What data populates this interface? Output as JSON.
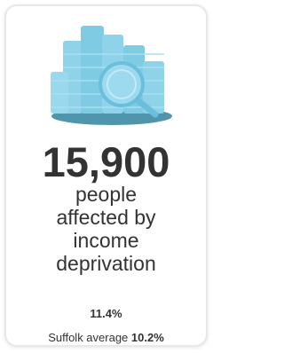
{
  "stat": {
    "value": "15,900",
    "description": [
      "people",
      "affected by",
      "income",
      "deprivation"
    ]
  },
  "rate": "11.4%",
  "comparison": {
    "label": "Suffolk average",
    "value": "10.2%"
  }
}
